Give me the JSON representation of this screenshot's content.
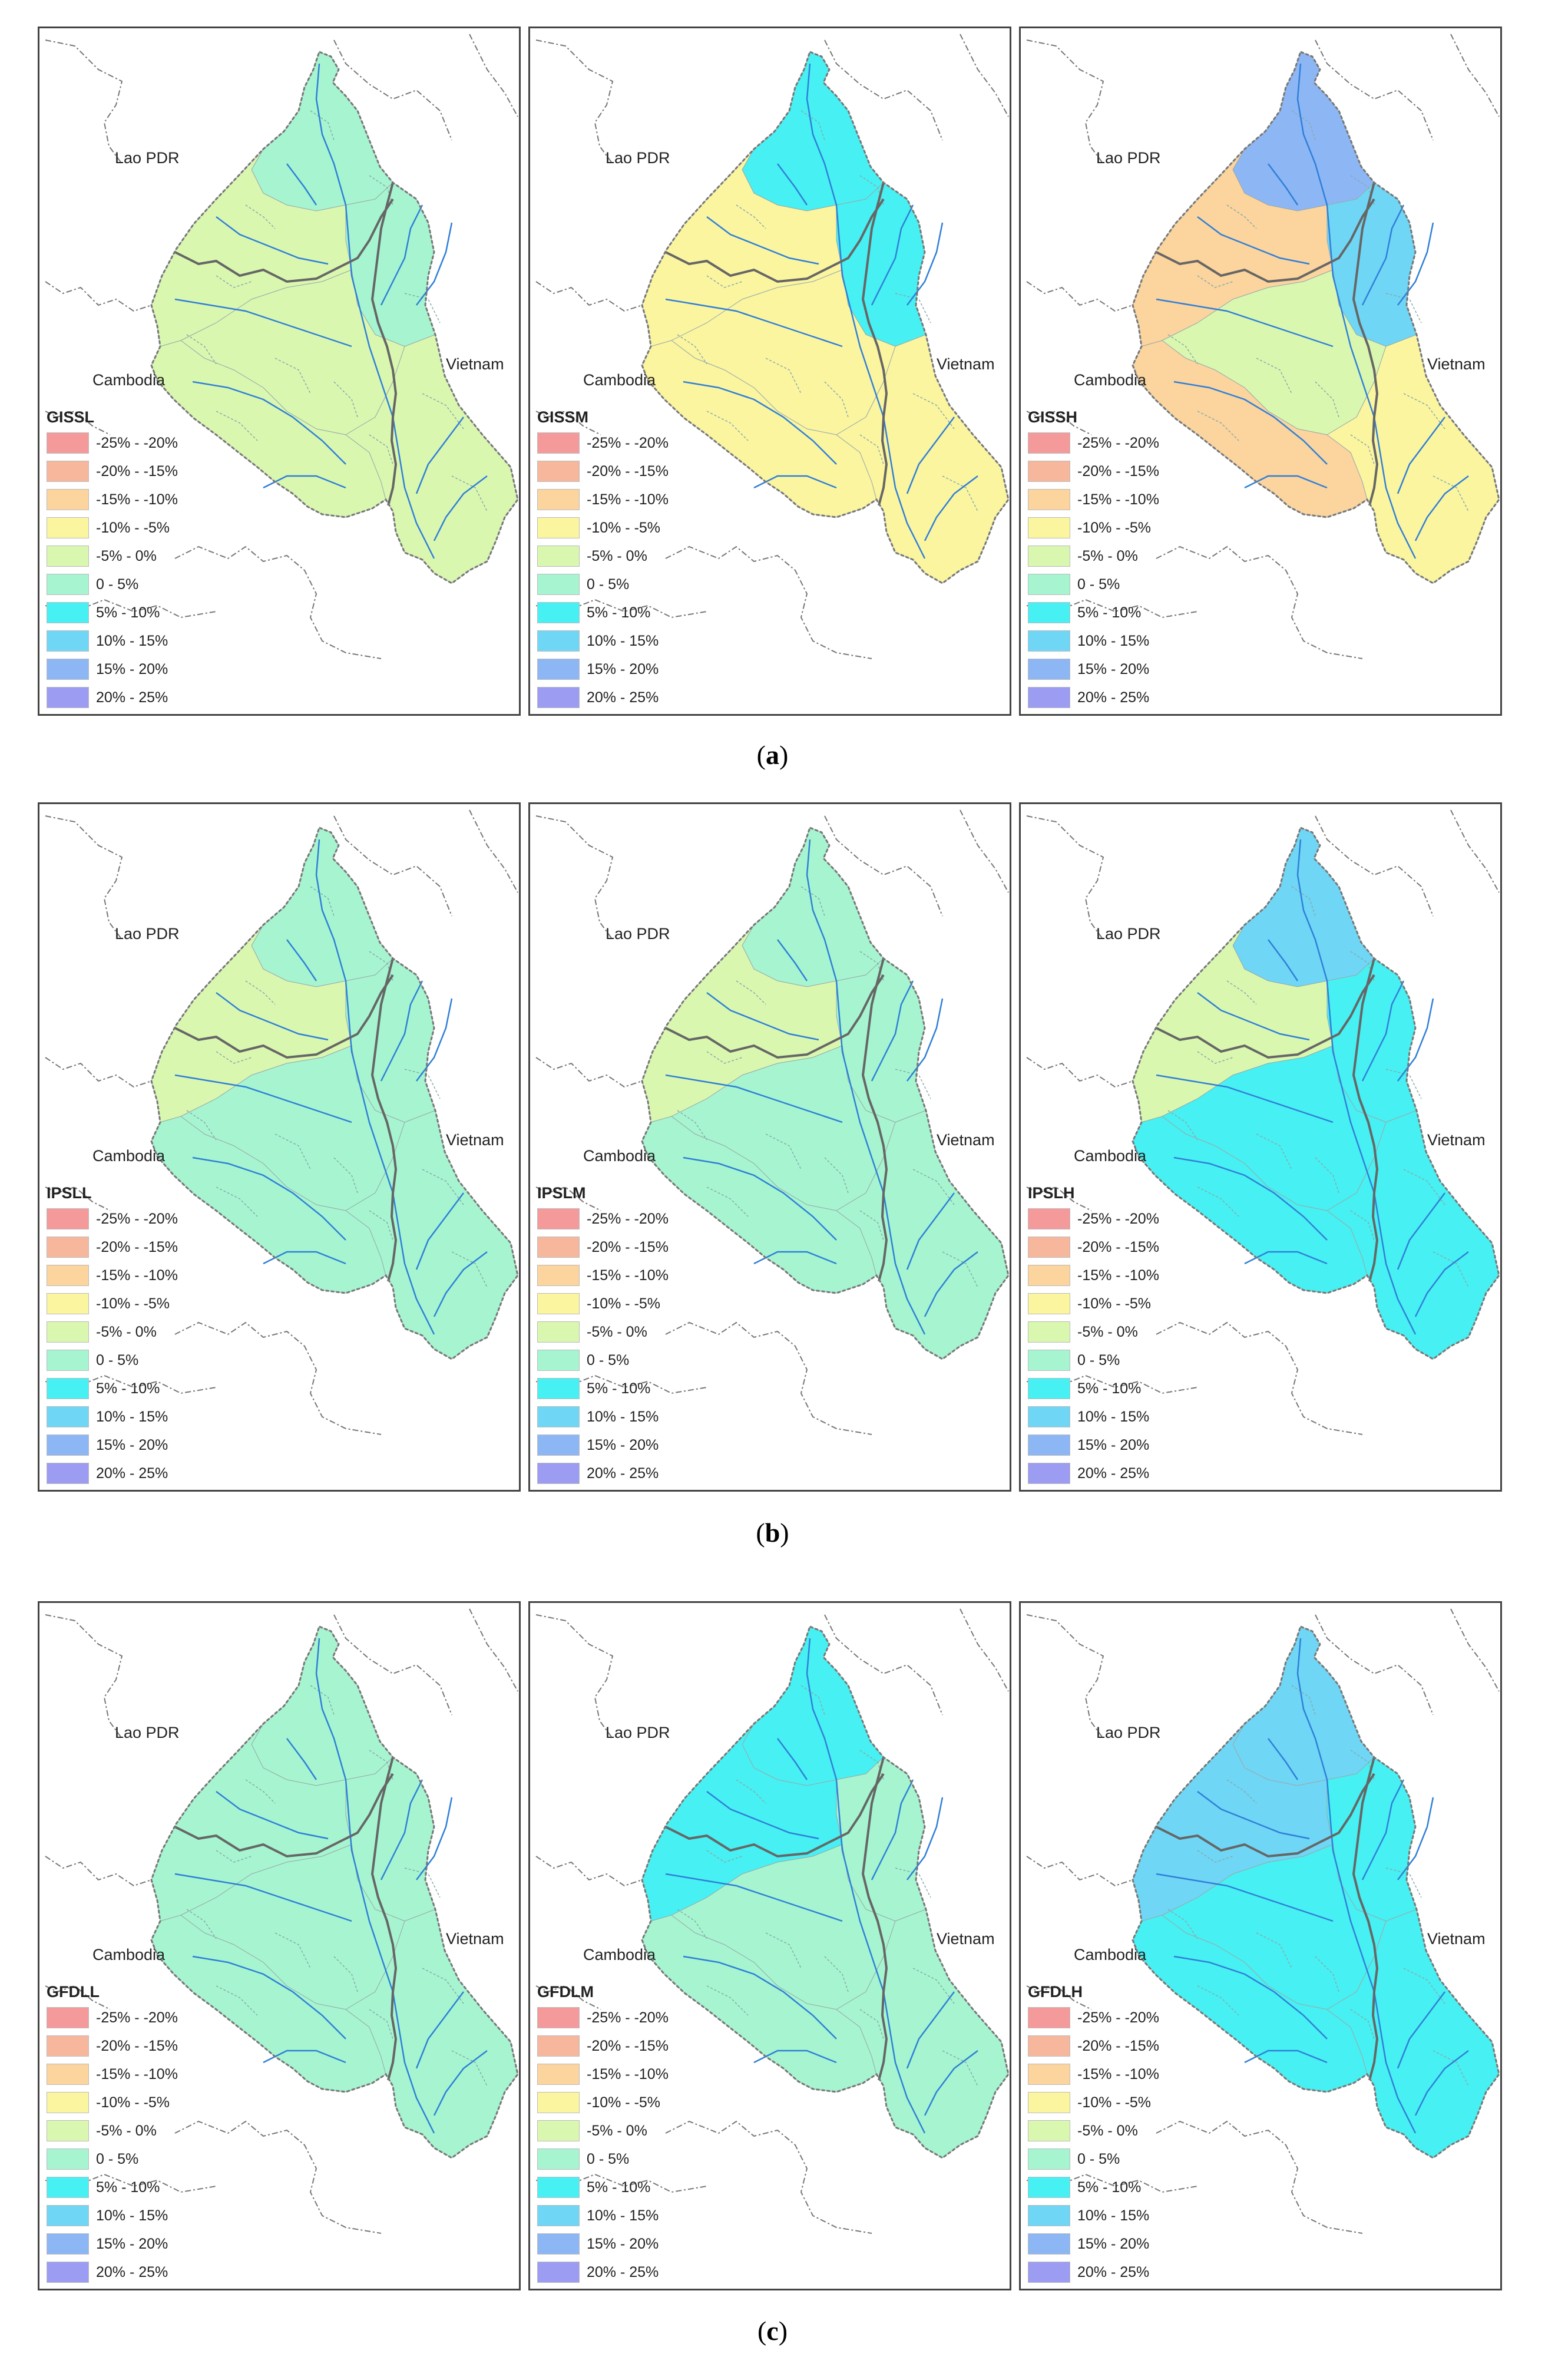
{
  "countries": {
    "lao": "Lao PDR",
    "vietnam": "Vietnam",
    "cambodia": "Cambodia"
  },
  "legend_classes": [
    {
      "label": "-25% - -20%",
      "color": "#f59a9a"
    },
    {
      "label": "-20% - -15%",
      "color": "#f7b79c"
    },
    {
      "label": "-15% - -10%",
      "color": "#fbd49e"
    },
    {
      "label": "-10% - -5%",
      "color": "#fbf5a0"
    },
    {
      "label": "-5% - 0%",
      "color": "#daf7b0"
    },
    {
      "label": "0 - 5%",
      "color": "#a6f5d0"
    },
    {
      "label": "5% - 10%",
      "color": "#47f0f2"
    },
    {
      "label": "10% - 15%",
      "color": "#6fd6f5"
    },
    {
      "label": "15% - 20%",
      "color": "#8db6f5"
    },
    {
      "label": "20% - 25%",
      "color": "#9b9cf2"
    }
  ],
  "rows": [
    {
      "caption": "a",
      "panels": [
        {
          "title": "GISSL",
          "zones": {
            "north": 5,
            "northeast": 5,
            "west": 4,
            "center": 4,
            "south": 4,
            "southeast": 4
          }
        },
        {
          "title": "GISSM",
          "zones": {
            "north": 6,
            "northeast": 6,
            "west": 3,
            "center": 3,
            "south": 3,
            "southeast": 3
          }
        },
        {
          "title": "GISSH",
          "zones": {
            "north": 8,
            "northeast": 7,
            "west": 2,
            "center": 4,
            "south": 2,
            "southeast": 3
          }
        }
      ]
    },
    {
      "caption": "b",
      "panels": [
        {
          "title": "IPSLL",
          "zones": {
            "north": 5,
            "northeast": 5,
            "west": 4,
            "center": 5,
            "south": 5,
            "southeast": 5
          }
        },
        {
          "title": "IPSLM",
          "zones": {
            "north": 5,
            "northeast": 5,
            "west": 4,
            "center": 5,
            "south": 5,
            "southeast": 5
          }
        },
        {
          "title": "IPSLH",
          "zones": {
            "north": 7,
            "northeast": 6,
            "west": 4,
            "center": 6,
            "south": 6,
            "southeast": 6
          }
        }
      ]
    },
    {
      "caption": "c",
      "panels": [
        {
          "title": "GFDLL",
          "zones": {
            "north": 5,
            "northeast": 5,
            "west": 5,
            "center": 5,
            "south": 5,
            "southeast": 5
          }
        },
        {
          "title": "GFDLM",
          "zones": {
            "north": 6,
            "northeast": 5,
            "west": 6,
            "center": 5,
            "south": 5,
            "southeast": 5
          }
        },
        {
          "title": "GFDLH",
          "zones": {
            "north": 7,
            "northeast": 6,
            "west": 7,
            "center": 6,
            "south": 6,
            "southeast": 6
          }
        }
      ]
    }
  ]
}
